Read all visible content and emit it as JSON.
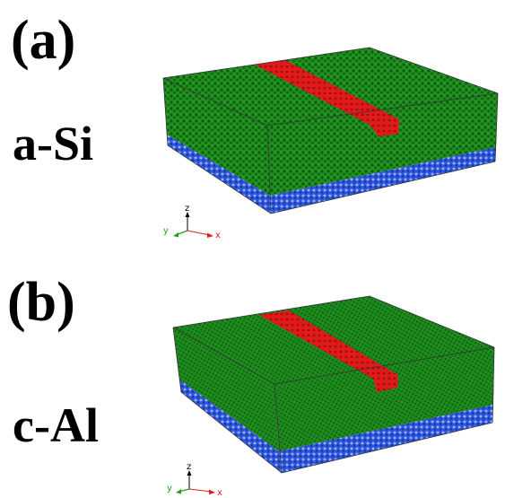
{
  "panels": [
    {
      "label": "(a)",
      "material": "a-Si"
    },
    {
      "label": "(b)",
      "material": "c-Al"
    }
  ],
  "axes": {
    "x": "x",
    "y": "y",
    "z": "z"
  },
  "colors": {
    "film": "#1e8a1e",
    "film_dark": "#0f5c0f",
    "stripe": "#e01515",
    "substrate": "#2a4fd8",
    "box_edge": "#333333",
    "axis_x": "#e02020",
    "axis_y": "#20a020",
    "axis_z": "#000000"
  }
}
